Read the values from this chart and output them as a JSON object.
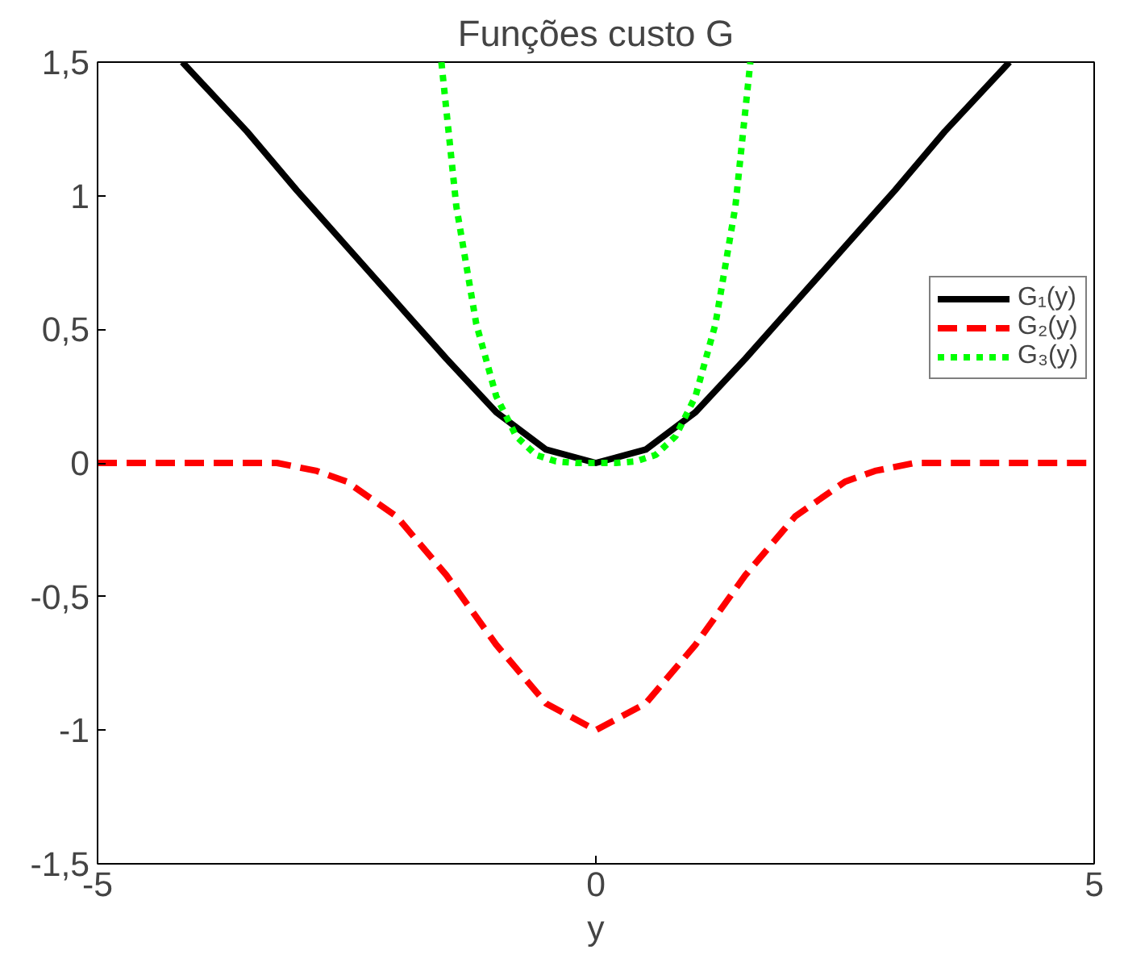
{
  "chart_data": {
    "type": "line",
    "title": "Funções custo G",
    "xlabel": "y",
    "xlim": [
      -5,
      5
    ],
    "ylim": [
      -1.5,
      1.5
    ],
    "xticks": [
      -5,
      0,
      5
    ],
    "yticks": [
      {
        "value": -1.5,
        "label": "-1,5"
      },
      -1,
      {
        "value": -0.5,
        "label": "-0,5"
      },
      0,
      {
        "value": 0.5,
        "label": "0,5"
      },
      1,
      {
        "value": 1.5,
        "label": "1,5"
      }
    ],
    "grid": false,
    "legend": "right",
    "series": [
      {
        "name": "G₁(y)",
        "color": "#000000",
        "line_style": "solid",
        "x": [
          -4.15,
          -3.5,
          -3,
          -2.5,
          -2,
          -1.5,
          -1,
          -0.5,
          0,
          0.5,
          1,
          1.5,
          2,
          2.5,
          3,
          3.5,
          4.15
        ],
        "values": [
          1.5,
          1.24,
          1.02,
          0.81,
          0.6,
          0.39,
          0.19,
          0.05,
          0,
          0.05,
          0.19,
          0.39,
          0.6,
          0.81,
          1.02,
          1.24,
          1.5
        ]
      },
      {
        "name": "G₂(y)",
        "color": "#ff0000",
        "line_style": "dashed",
        "x": [
          -5,
          -3.2,
          -2.8,
          -2.5,
          -2,
          -1.5,
          -1,
          -0.5,
          0,
          0.5,
          1,
          1.5,
          2,
          2.5,
          2.8,
          3.2,
          5
        ],
        "values": [
          0,
          0,
          -0.03,
          -0.07,
          -0.2,
          -0.42,
          -0.68,
          -0.9,
          -1,
          -0.9,
          -0.68,
          -0.42,
          -0.2,
          -0.07,
          -0.03,
          0,
          0
        ]
      },
      {
        "name": "G₃(y)",
        "color": "#00ff00",
        "line_style": "dotted",
        "x": [
          -1.55,
          -1.4,
          -1.2,
          -1,
          -0.8,
          -0.6,
          -0.4,
          -0.2,
          0,
          0.2,
          0.4,
          0.6,
          0.8,
          1,
          1.2,
          1.4,
          1.55
        ],
        "values": [
          1.5,
          0.96,
          0.52,
          0.25,
          0.1,
          0.03,
          0.006,
          0,
          0,
          0,
          0.006,
          0.03,
          0.1,
          0.25,
          0.52,
          0.96,
          1.5
        ]
      }
    ]
  }
}
